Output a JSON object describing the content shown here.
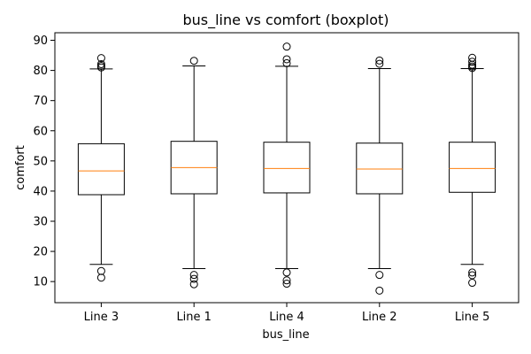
{
  "chart_data": {
    "type": "boxplot",
    "title": "bus_line vs comfort (boxplot)",
    "xlabel": "bus_line",
    "ylabel": "comfort",
    "ylim": [
      3,
      92.5
    ],
    "yticks": [
      10,
      20,
      30,
      40,
      50,
      60,
      70,
      80,
      90
    ],
    "grid": false,
    "colors": {
      "box": "#000000",
      "median": "#ff7f0e",
      "flier": "#000000"
    },
    "categories": [
      "Line 3",
      "Line 1",
      "Line 4",
      "Line 2",
      "Line 5"
    ],
    "boxes": [
      {
        "category": "Line 3",
        "whisker_low": 15.7,
        "q1": 38.8,
        "median": 46.7,
        "q3": 55.7,
        "whisker_high": 80.5,
        "fliers": [
          84.1,
          82.1,
          81.5,
          81.0,
          13.5,
          11.3
        ]
      },
      {
        "category": "Line 1",
        "whisker_low": 14.3,
        "q1": 39.1,
        "median": 47.8,
        "q3": 56.5,
        "whisker_high": 81.5,
        "fliers": [
          83.2,
          12.2,
          10.9,
          9.1
        ]
      },
      {
        "category": "Line 4",
        "whisker_low": 14.3,
        "q1": 39.4,
        "median": 47.5,
        "q3": 56.2,
        "whisker_high": 81.4,
        "fliers": [
          87.9,
          83.7,
          82.4,
          13.0,
          10.4,
          9.3
        ]
      },
      {
        "category": "Line 2",
        "whisker_low": 14.3,
        "q1": 39.1,
        "median": 47.3,
        "q3": 55.9,
        "whisker_high": 80.6,
        "fliers": [
          83.3,
          82.2,
          12.2,
          7.0
        ]
      },
      {
        "category": "Line 5",
        "whisker_low": 15.7,
        "q1": 39.6,
        "median": 47.5,
        "q3": 56.2,
        "whisker_high": 80.6,
        "fliers": [
          84.2,
          82.9,
          81.9,
          81.3,
          80.8,
          13.0,
          12.1,
          9.6
        ]
      }
    ]
  }
}
